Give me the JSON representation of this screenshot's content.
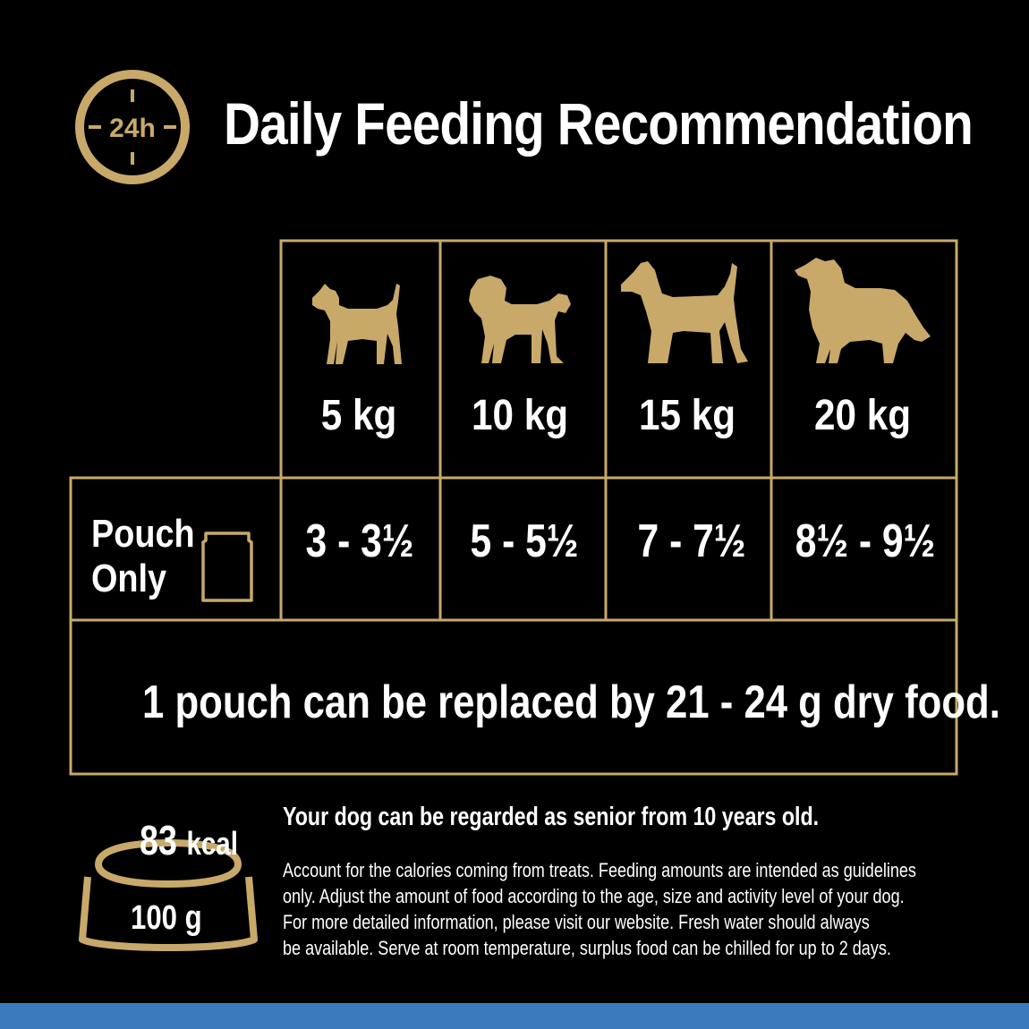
{
  "header": {
    "clock_label": "24h",
    "title": "Daily Feeding Recommendation"
  },
  "table": {
    "columns": [
      {
        "icon": "small-terrier-icon",
        "weight": "5 kg",
        "pouch_amount": "3 - 3½"
      },
      {
        "icon": "pug-icon",
        "weight": "10 kg",
        "pouch_amount": "5 - 5½"
      },
      {
        "icon": "terrier-icon",
        "weight": "15 kg",
        "pouch_amount": "7 - 7½"
      },
      {
        "icon": "collie-icon",
        "weight": "20 kg",
        "pouch_amount": "8½ - 9½"
      }
    ],
    "row_label_line1": "Pouch",
    "row_label_line2": "Only",
    "row_icon": "pouch-icon",
    "replacement_note": "1 pouch can be replaced by 21 - 24 g dry food."
  },
  "bowl": {
    "kcal_value": "83",
    "kcal_unit": "kcal",
    "amount": "100 g"
  },
  "notes": {
    "senior": "Your dog can be regarded as senior from 10 years old.",
    "guidelines_1": "Account for the calories coming from treats. Feeding amounts are intended as guidelines",
    "guidelines_2": "only. Adjust the amount of food according to the age, size and activity level of your dog.",
    "guidelines_3": "For more detailed information, please visit our website. Fresh water should always",
    "guidelines_4": "be available. Serve at room temperature, surplus food can be chilled for up to 2 days."
  },
  "colors": {
    "background": "#000000",
    "accent_gold": "#c8a96a",
    "text": "#ffffff",
    "bottom_band": "#3a7bbd"
  }
}
